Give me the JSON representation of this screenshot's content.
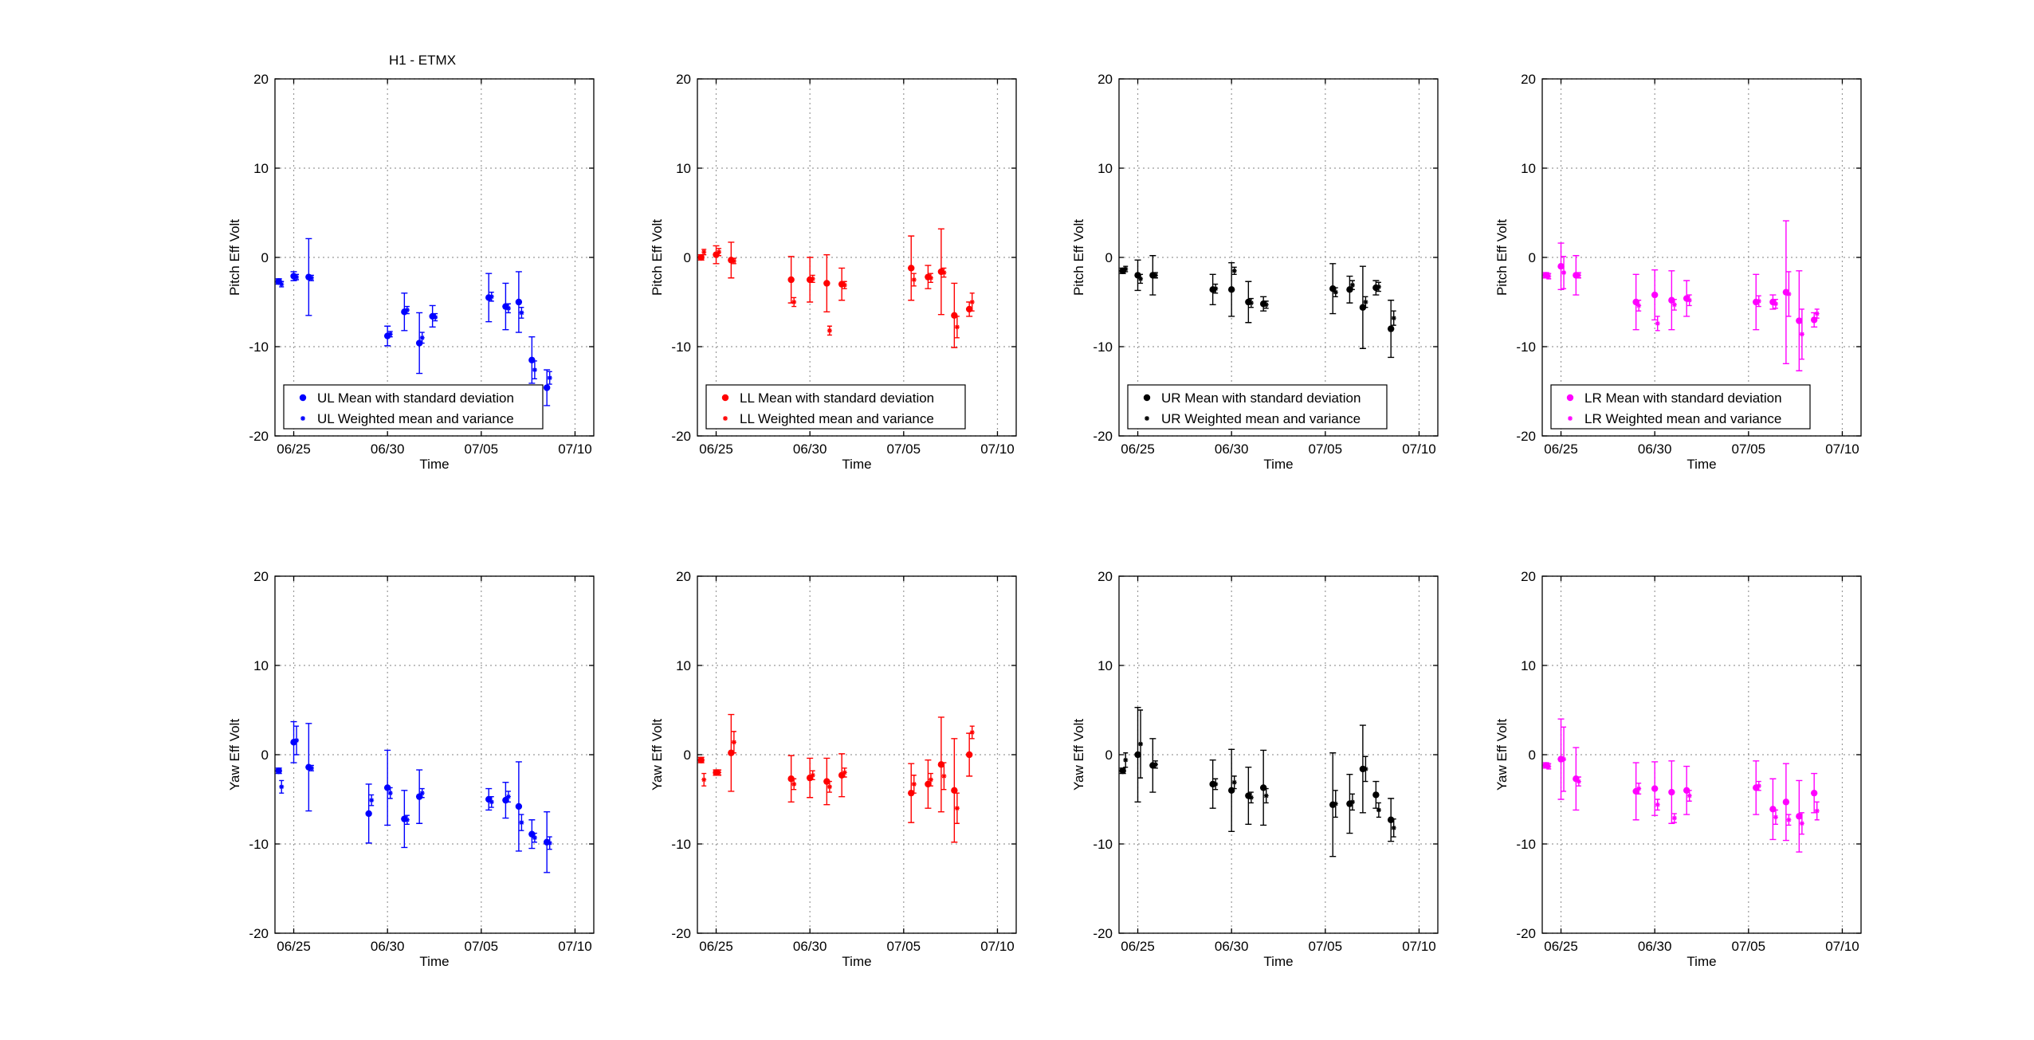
{
  "figure_title": "H1 - ETMX",
  "chart_data": [
    {
      "type": "scatter",
      "panel": "UL-pitch",
      "ylabel": "Pitch Eff Volt",
      "xlabel": "Time",
      "ylim": [
        -20,
        20
      ],
      "xlim": [
        "06/24",
        "07/11"
      ],
      "yticks": [
        -20,
        -10,
        0,
        10,
        20
      ],
      "xtick_labels": [
        "06/25",
        "06/30",
        "07/05",
        "07/10"
      ],
      "grid": true,
      "legend_position": "bottom-left",
      "color": "#0000ff",
      "series": [
        {
          "name": "UL Mean with standard deviation",
          "marker": "dot",
          "x": [
            0.2,
            1.0,
            1.8,
            6.0,
            6.9,
            7.7,
            8.4,
            11.4,
            12.3,
            13.0,
            13.7,
            14.5
          ],
          "y": [
            -2.7,
            -2.1,
            -2.2,
            -8.8,
            -6.1,
            -9.6,
            -6.6,
            -4.5,
            -5.5,
            -5.0,
            -11.5,
            -14.6
          ],
          "err": [
            0.3,
            0.5,
            4.3,
            1.1,
            2.1,
            3.4,
            1.2,
            2.7,
            2.6,
            3.4,
            2.6,
            2.0
          ]
        },
        {
          "name": "UL Weighted mean and variance",
          "marker": "star",
          "x": [
            0.35,
            1.15,
            1.95,
            6.15,
            7.05,
            7.85,
            8.55,
            11.55,
            12.45,
            13.15,
            13.85,
            14.65
          ],
          "y": [
            -3.0,
            -2.2,
            -2.3,
            -8.6,
            -5.9,
            -9.0,
            -6.7,
            -4.4,
            -5.7,
            -6.2,
            -12.6,
            -13.5
          ],
          "err": [
            0.3,
            0.3,
            0.3,
            0.3,
            0.4,
            0.6,
            0.4,
            0.5,
            0.5,
            0.6,
            1.0,
            0.7
          ]
        }
      ]
    },
    {
      "type": "scatter",
      "panel": "LL-pitch",
      "ylabel": "Pitch Eff Volt",
      "xlabel": "Time",
      "ylim": [
        -20,
        20
      ],
      "xlim": [
        "06/24",
        "07/11"
      ],
      "yticks": [
        -20,
        -10,
        0,
        10,
        20
      ],
      "xtick_labels": [
        "06/25",
        "06/30",
        "07/05",
        "07/10"
      ],
      "grid": true,
      "legend_position": "bottom-left",
      "color": "#ff0000",
      "series": [
        {
          "name": "LL Mean with standard deviation",
          "marker": "dot",
          "x": [
            0.2,
            1.0,
            1.8,
            5.0,
            6.0,
            6.9,
            7.7,
            11.4,
            12.3,
            13.0,
            13.7,
            14.5
          ],
          "y": [
            0.0,
            0.3,
            -0.3,
            -2.5,
            -2.5,
            -2.9,
            -3.0,
            -1.2,
            -2.2,
            -1.6,
            -6.5,
            -5.8
          ],
          "err": [
            0.3,
            1.0,
            2.0,
            2.6,
            2.5,
            3.2,
            1.8,
            3.6,
            1.3,
            4.8,
            3.6,
            0.8
          ]
        },
        {
          "name": "LL Weighted mean and variance",
          "marker": "star",
          "x": [
            0.35,
            1.15,
            1.95,
            5.15,
            6.15,
            7.05,
            7.85,
            11.55,
            12.45,
            13.15,
            13.85,
            14.65
          ],
          "y": [
            0.6,
            0.6,
            -0.4,
            -5.0,
            -2.4,
            -8.2,
            -3.1,
            -2.5,
            -2.3,
            -1.7,
            -7.8,
            -5.0
          ],
          "err": [
            0.3,
            0.4,
            0.3,
            0.5,
            0.4,
            0.5,
            0.4,
            0.7,
            0.5,
            0.5,
            1.2,
            1.0
          ]
        }
      ]
    },
    {
      "type": "scatter",
      "panel": "UR-pitch",
      "ylabel": "Pitch Eff Volt",
      "xlabel": "Time",
      "ylim": [
        -20,
        20
      ],
      "xlim": [
        "06/24",
        "07/11"
      ],
      "yticks": [
        -20,
        -10,
        0,
        10,
        20
      ],
      "xtick_labels": [
        "06/25",
        "06/30",
        "07/05",
        "07/10"
      ],
      "grid": true,
      "legend_position": "bottom-left",
      "color": "#000000",
      "series": [
        {
          "name": "UR Mean with standard deviation",
          "marker": "dot",
          "x": [
            0.2,
            1.0,
            1.8,
            5.0,
            6.0,
            6.9,
            7.7,
            11.4,
            12.3,
            13.0,
            13.7,
            14.5
          ],
          "y": [
            -1.5,
            -2.0,
            -2.0,
            -3.6,
            -3.6,
            -5.0,
            -5.2,
            -3.5,
            -3.6,
            -5.6,
            -3.4,
            -8.0
          ],
          "err": [
            0.3,
            1.7,
            2.2,
            1.7,
            3.0,
            2.3,
            0.8,
            2.8,
            1.5,
            4.6,
            0.8,
            3.2
          ]
        },
        {
          "name": "UR Weighted mean and variance",
          "marker": "star",
          "x": [
            0.35,
            1.15,
            1.95,
            5.15,
            6.15,
            7.05,
            7.85,
            11.55,
            12.45,
            13.15,
            13.85,
            14.65
          ],
          "y": [
            -1.3,
            -2.4,
            -2.0,
            -3.5,
            -1.5,
            -5.1,
            -5.3,
            -3.9,
            -3.1,
            -5.0,
            -3.3,
            -6.8
          ],
          "err": [
            0.3,
            0.5,
            0.3,
            0.5,
            0.4,
            0.5,
            0.4,
            0.5,
            0.5,
            0.6,
            0.5,
            0.8
          ]
        }
      ]
    },
    {
      "type": "scatter",
      "panel": "LR-pitch",
      "ylabel": "Pitch Eff Volt",
      "xlabel": "Time",
      "ylim": [
        -20,
        20
      ],
      "xlim": [
        "06/24",
        "07/11"
      ],
      "yticks": [
        -20,
        -10,
        0,
        10,
        20
      ],
      "xtick_labels": [
        "06/25",
        "06/30",
        "07/05",
        "07/10"
      ],
      "grid": true,
      "legend_position": "bottom-left",
      "color": "#ff00ff",
      "series": [
        {
          "name": "LR Mean with standard deviation",
          "marker": "dot",
          "x": [
            0.2,
            1.0,
            1.8,
            5.0,
            6.0,
            6.9,
            7.7,
            11.4,
            12.3,
            13.0,
            13.7,
            14.5
          ],
          "y": [
            -2.0,
            -1.0,
            -2.0,
            -5.0,
            -4.2,
            -4.8,
            -4.6,
            -5.0,
            -5.0,
            -3.9,
            -7.1,
            -7.0
          ],
          "err": [
            0.3,
            2.6,
            2.2,
            3.1,
            2.8,
            3.3,
            2.0,
            3.1,
            0.8,
            8.0,
            5.6,
            0.8
          ]
        },
        {
          "name": "LR Weighted mean and variance",
          "marker": "star",
          "x": [
            0.35,
            1.15,
            1.95,
            5.15,
            6.15,
            7.05,
            7.85,
            11.55,
            12.45,
            13.15,
            13.85,
            14.65
          ],
          "y": [
            -2.1,
            -1.7,
            -2.0,
            -5.4,
            -7.4,
            -5.3,
            -4.8,
            -4.9,
            -5.2,
            -4.1,
            -8.6,
            -6.3
          ],
          "err": [
            0.3,
            1.8,
            0.3,
            0.6,
            0.8,
            0.6,
            0.6,
            0.6,
            0.5,
            2.5,
            2.8,
            0.5
          ]
        }
      ]
    },
    {
      "type": "scatter",
      "panel": "UL-yaw",
      "ylabel": "Yaw Eff Volt",
      "xlabel": "Time",
      "ylim": [
        -20,
        20
      ],
      "xlim": [
        "06/24",
        "07/11"
      ],
      "yticks": [
        -20,
        -10,
        0,
        10,
        20
      ],
      "xtick_labels": [
        "06/25",
        "06/30",
        "07/05",
        "07/10"
      ],
      "grid": true,
      "color": "#0000ff",
      "series": [
        {
          "name": "UL Mean with standard deviation",
          "marker": "dot",
          "x": [
            0.2,
            1.0,
            1.8,
            5.0,
            6.0,
            6.9,
            7.7,
            11.4,
            12.3,
            13.0,
            13.7,
            14.5
          ],
          "y": [
            -1.8,
            1.4,
            -1.4,
            -6.6,
            -3.7,
            -7.2,
            -4.7,
            -5.0,
            -5.1,
            -5.8,
            -8.9,
            -9.8
          ],
          "err": [
            0.3,
            2.3,
            4.9,
            3.3,
            4.2,
            3.2,
            3.0,
            1.2,
            2.0,
            5.0,
            1.6,
            3.4
          ]
        },
        {
          "name": "UL Weighted mean and variance",
          "marker": "star",
          "x": [
            0.35,
            1.15,
            1.95,
            5.15,
            6.15,
            7.05,
            7.85,
            11.55,
            12.45,
            13.15,
            13.85,
            14.65
          ],
          "y": [
            -3.6,
            1.6,
            -1.5,
            -5.1,
            -4.3,
            -7.3,
            -4.3,
            -5.3,
            -4.7,
            -7.6,
            -9.3,
            -9.9
          ],
          "err": [
            0.7,
            1.6,
            0.3,
            0.6,
            0.6,
            0.5,
            0.5,
            0.6,
            0.6,
            0.9,
            0.5,
            0.7
          ]
        }
      ]
    },
    {
      "type": "scatter",
      "panel": "LL-yaw",
      "ylabel": "Yaw Eff Volt",
      "xlabel": "Time",
      "ylim": [
        -20,
        20
      ],
      "xlim": [
        "06/24",
        "07/11"
      ],
      "yticks": [
        -20,
        -10,
        0,
        10,
        20
      ],
      "xtick_labels": [
        "06/25",
        "06/30",
        "07/05",
        "07/10"
      ],
      "grid": true,
      "color": "#ff0000",
      "series": [
        {
          "name": "LL Mean with standard deviation",
          "marker": "dot",
          "x": [
            0.2,
            1.0,
            1.8,
            5.0,
            6.0,
            6.9,
            7.7,
            11.4,
            12.3,
            13.0,
            13.7,
            14.5
          ],
          "y": [
            -0.6,
            -2.0,
            0.2,
            -2.7,
            -2.6,
            -3.0,
            -2.3,
            -4.3,
            -3.3,
            -1.1,
            -4.0,
            0.0
          ],
          "err": [
            0.3,
            0.3,
            4.3,
            2.6,
            2.2,
            2.6,
            2.4,
            3.3,
            2.7,
            5.3,
            5.8,
            2.4
          ]
        },
        {
          "name": "LL Weighted mean and variance",
          "marker": "star",
          "x": [
            0.35,
            1.15,
            1.95,
            5.15,
            6.15,
            7.05,
            7.85,
            11.55,
            12.45,
            13.15,
            13.85,
            14.65
          ],
          "y": [
            -2.8,
            -2.0,
            1.4,
            -3.3,
            -2.3,
            -3.6,
            -2.0,
            -3.3,
            -2.8,
            -2.4,
            -6.0,
            2.5
          ],
          "err": [
            0.7,
            0.3,
            1.2,
            0.6,
            0.5,
            0.6,
            0.5,
            1.0,
            0.7,
            1.5,
            1.7,
            0.7
          ]
        }
      ]
    },
    {
      "type": "scatter",
      "panel": "UR-yaw",
      "ylabel": "Yaw Eff Volt",
      "xlabel": "Time",
      "ylim": [
        -20,
        20
      ],
      "xlim": [
        "06/24",
        "07/11"
      ],
      "yticks": [
        -20,
        -10,
        0,
        10,
        20
      ],
      "xtick_labels": [
        "06/25",
        "06/30",
        "07/05",
        "07/10"
      ],
      "grid": true,
      "color": "#000000",
      "series": [
        {
          "name": "UR Mean with standard deviation",
          "marker": "dot",
          "x": [
            0.2,
            1.0,
            1.8,
            5.0,
            6.0,
            6.9,
            7.7,
            11.4,
            12.3,
            13.0,
            13.7,
            14.5
          ],
          "y": [
            -1.8,
            0.0,
            -1.2,
            -3.3,
            -4.0,
            -4.6,
            -3.7,
            -5.6,
            -5.5,
            -1.6,
            -4.5,
            -7.3
          ],
          "err": [
            0.3,
            5.3,
            3.0,
            2.7,
            4.6,
            3.2,
            4.2,
            5.8,
            3.3,
            4.9,
            1.5,
            2.4
          ]
        },
        {
          "name": "UR Weighted mean and variance",
          "marker": "star",
          "x": [
            0.35,
            1.15,
            1.95,
            5.15,
            6.15,
            7.05,
            7.85,
            11.55,
            12.45,
            13.15,
            13.85,
            14.65
          ],
          "y": [
            -0.6,
            1.2,
            -1.1,
            -3.3,
            -3.1,
            -4.8,
            -4.6,
            -5.5,
            -5.3,
            -1.6,
            -6.2,
            -8.2
          ],
          "err": [
            0.8,
            3.8,
            0.4,
            0.6,
            0.7,
            0.6,
            0.8,
            1.5,
            0.9,
            1.4,
            0.8,
            1.0
          ]
        }
      ]
    },
    {
      "type": "scatter",
      "panel": "LR-yaw",
      "ylabel": "Yaw Eff Volt",
      "xlabel": "Time",
      "ylim": [
        -20,
        20
      ],
      "xlim": [
        "06/24",
        "07/11"
      ],
      "yticks": [
        -20,
        -10,
        0,
        10,
        20
      ],
      "xtick_labels": [
        "06/25",
        "06/30",
        "07/05",
        "07/10"
      ],
      "grid": true,
      "color": "#ff00ff",
      "series": [
        {
          "name": "LR Mean with standard deviation",
          "marker": "dot",
          "x": [
            0.2,
            1.0,
            1.8,
            5.0,
            6.0,
            6.9,
            7.7,
            11.4,
            12.3,
            13.0,
            13.7,
            14.5
          ],
          "y": [
            -1.2,
            -0.5,
            -2.7,
            -4.1,
            -3.8,
            -4.2,
            -4.0,
            -3.7,
            -6.1,
            -5.3,
            -6.9,
            -4.3
          ],
          "err": [
            0.3,
            4.5,
            3.5,
            3.2,
            3.0,
            3.5,
            2.7,
            3.0,
            3.4,
            4.3,
            4.0,
            2.2
          ]
        },
        {
          "name": "LR Weighted mean and variance",
          "marker": "star",
          "x": [
            0.35,
            1.15,
            1.95,
            5.15,
            6.15,
            7.05,
            7.85,
            11.55,
            12.45,
            13.15,
            13.85,
            14.65
          ],
          "y": [
            -1.3,
            -0.5,
            -3.0,
            -3.8,
            -5.6,
            -7.1,
            -4.6,
            -3.5,
            -7.0,
            -7.3,
            -7.7,
            -6.3
          ],
          "err": [
            0.3,
            3.6,
            0.5,
            0.6,
            0.6,
            0.5,
            0.6,
            0.5,
            0.8,
            0.6,
            1.2,
            1.0
          ]
        }
      ]
    }
  ]
}
